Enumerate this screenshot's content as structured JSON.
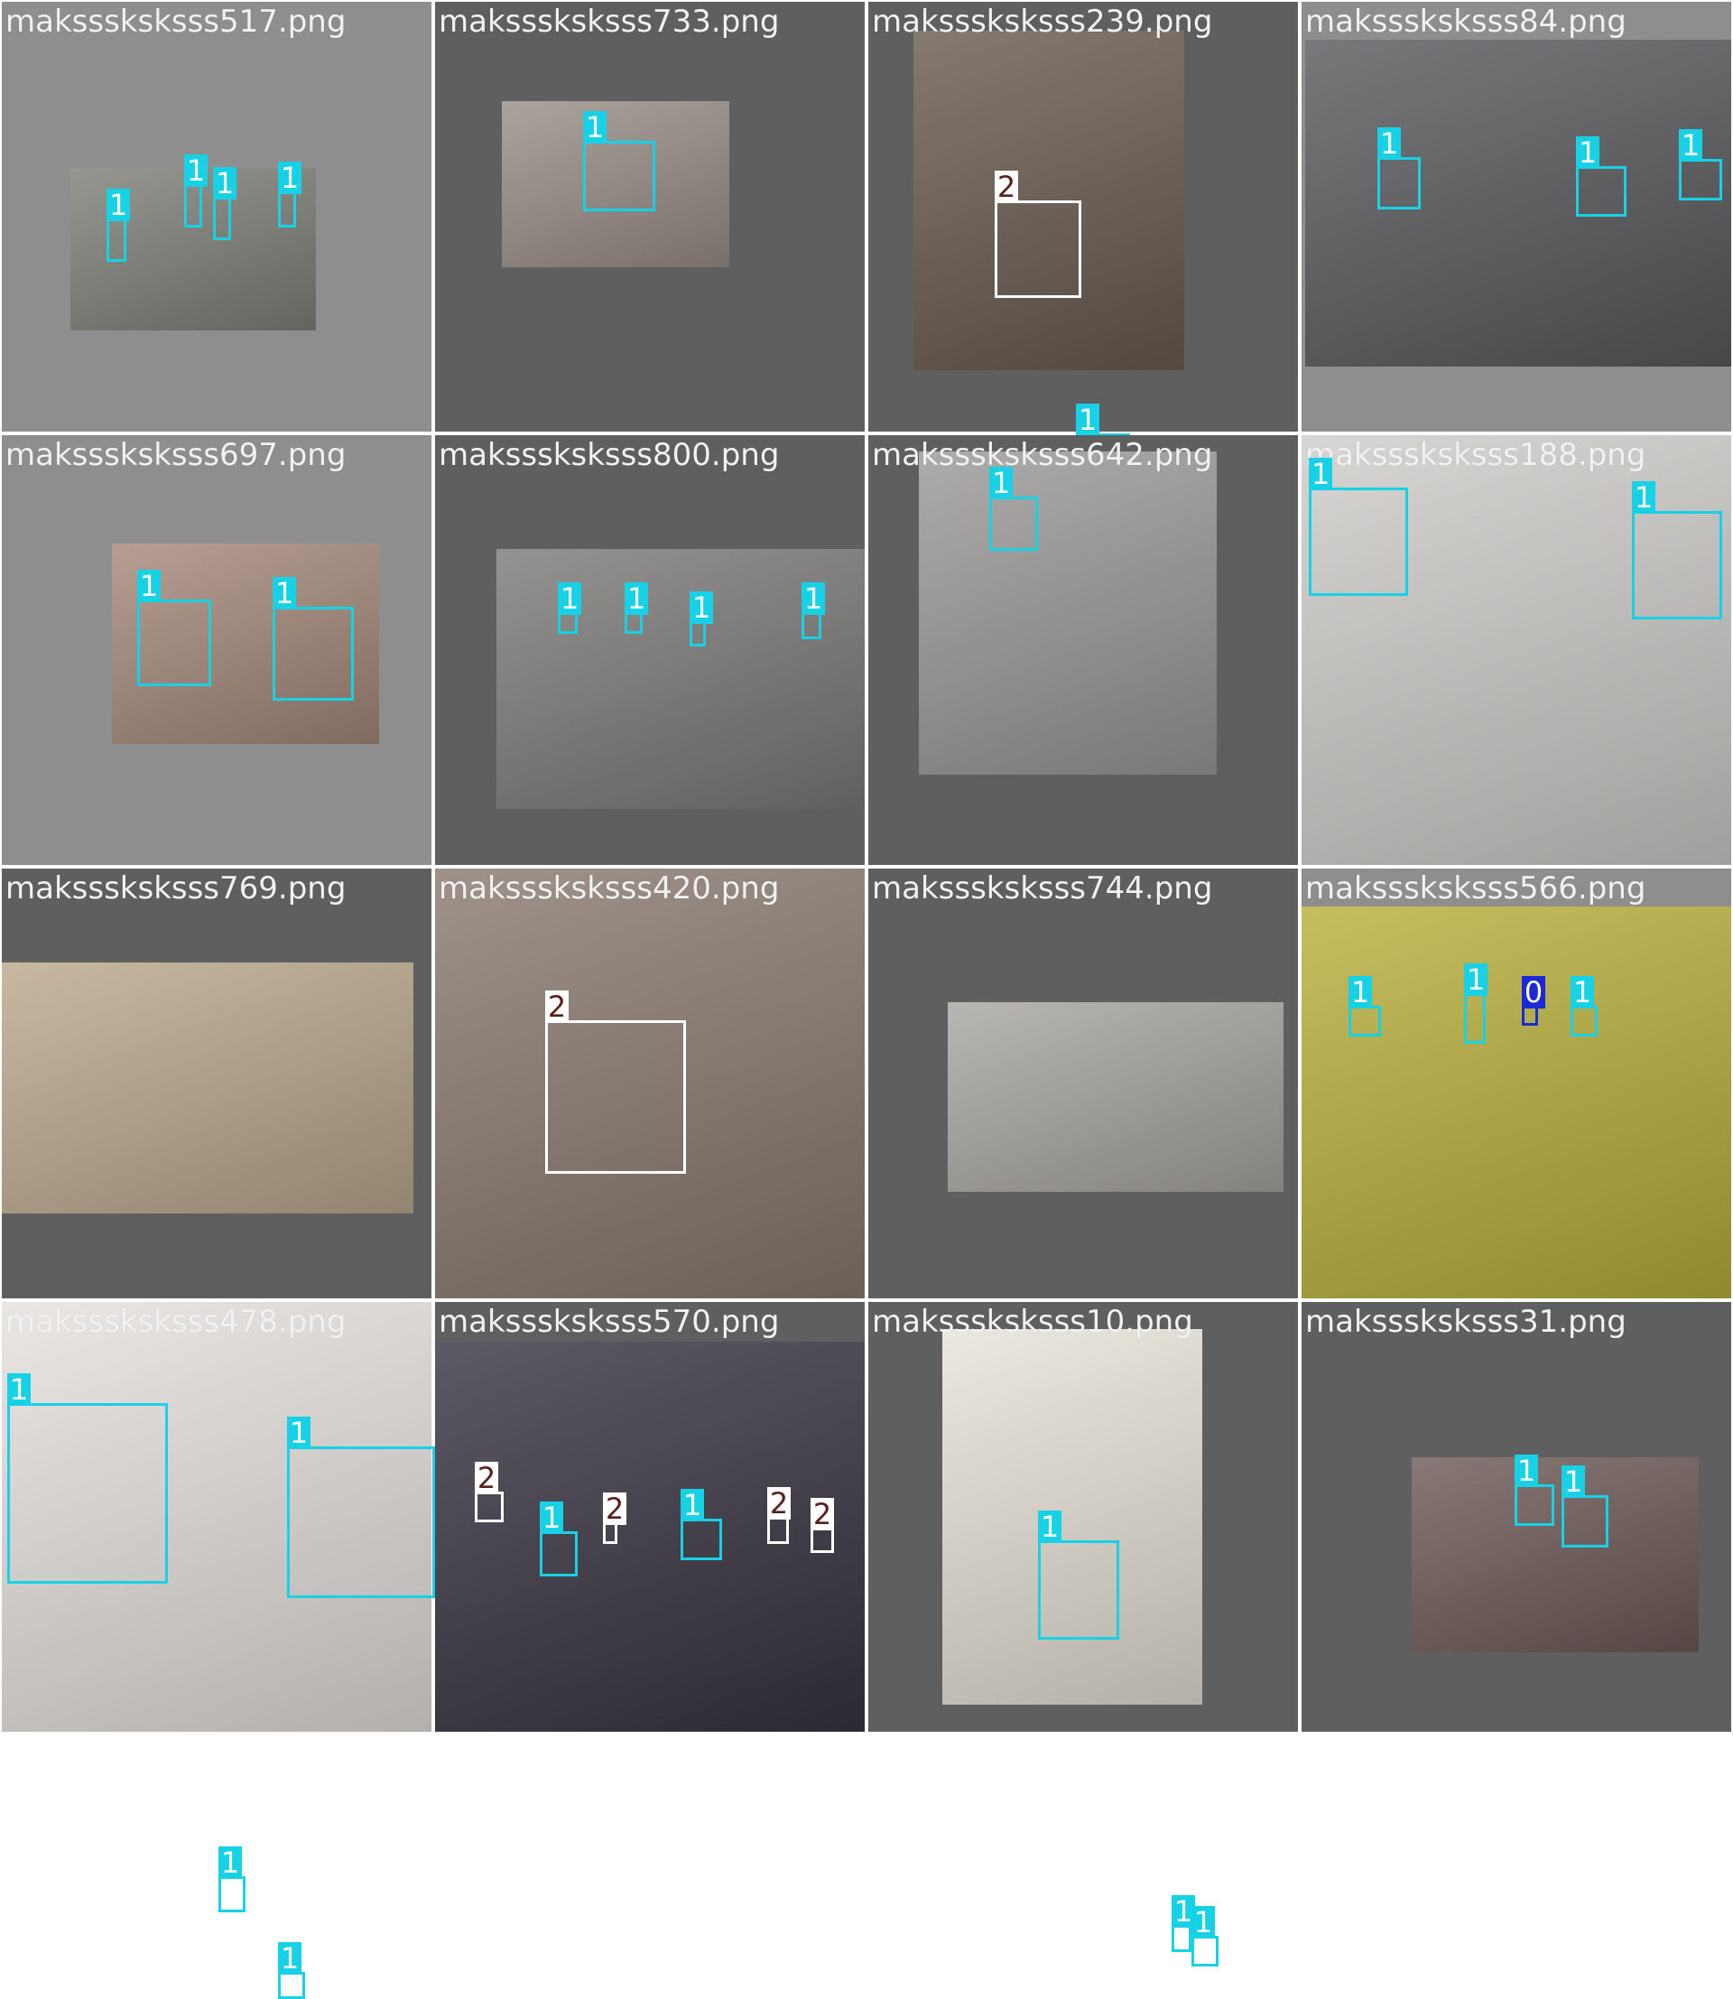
{
  "class_colors": {
    "0": {
      "border": "#1a2ad6",
      "label_bg": "#1a2ad6",
      "label_fg": "#ffffff"
    },
    "1": {
      "border": "#17d2e6",
      "label_bg": "#17d2e6",
      "label_fg": "#ffffff"
    },
    "2": {
      "border": "#ffffff",
      "label_bg": "#ffffff",
      "label_fg": "#5a1f1a"
    }
  },
  "tiles": [
    {
      "file": "maksssksksss517.png",
      "bg": "#8e8e8e",
      "photo_color": "#7f8178",
      "boxes": [
        {
          "cls": "1"
        },
        {
          "cls": "1"
        },
        {
          "cls": "1"
        },
        {
          "cls": "1"
        }
      ]
    },
    {
      "file": "maksssksksss733.png",
      "bg": "#5f5f5f",
      "photo_color": "#9a8f88",
      "boxes": [
        {
          "cls": "1"
        }
      ]
    },
    {
      "file": "maksssksksss239.png",
      "bg": "#5f5f5f",
      "photo_color": "#6a5d52",
      "boxes": [
        {
          "cls": "2"
        },
        {
          "cls": "1"
        }
      ]
    },
    {
      "file": "maksssksksss84.png",
      "bg": "#8e8e8e",
      "photo_color": "#5b5a5e",
      "boxes": [
        {
          "cls": "1"
        },
        {
          "cls": "1"
        },
        {
          "cls": "1"
        }
      ]
    },
    {
      "file": "maksssksksss697.png",
      "bg": "#8e8e8e",
      "photo_color": "#a68a7a",
      "boxes": [
        {
          "cls": "1"
        },
        {
          "cls": "1"
        }
      ]
    },
    {
      "file": "maksssksksss800.png",
      "bg": "#5f5f5f",
      "photo_color": "#7c7b7a",
      "boxes": [
        {
          "cls": "1"
        },
        {
          "cls": "1"
        },
        {
          "cls": "1"
        },
        {
          "cls": "1"
        }
      ]
    },
    {
      "file": "maksssksksss642.png",
      "bg": "#5f5f5f",
      "photo_color": "#9c9a98",
      "boxes": [
        {
          "cls": "1"
        }
      ]
    },
    {
      "file": "maksssksksss188.png",
      "bg": "#8e8e8e",
      "photo_color": "#cfcdca",
      "boxes": [
        {
          "cls": "1"
        },
        {
          "cls": "1"
        }
      ]
    },
    {
      "file": "maksssksksss769.png",
      "bg": "#5f5f5f",
      "photo_color": "#bca98e",
      "boxes": [
        {
          "cls": "1"
        },
        {
          "cls": "1"
        }
      ]
    },
    {
      "file": "maksssksksss420.png",
      "bg": "#8e8e8e",
      "photo_color": "#8a7a70",
      "boxes": [
        {
          "cls": "2"
        }
      ]
    },
    {
      "file": "maksssksksss744.png",
      "bg": "#5f5f5f",
      "photo_color": "#a9a6a3",
      "boxes": [
        {
          "cls": "1"
        },
        {
          "cls": "1"
        }
      ]
    },
    {
      "file": "maksssksksss566.png",
      "bg": "#8e8e8e",
      "photo_color": "#b9b03c",
      "boxes": [
        {
          "cls": "1"
        },
        {
          "cls": "1"
        },
        {
          "cls": "0"
        },
        {
          "cls": "1"
        }
      ]
    },
    {
      "file": "maksssksksss478.png",
      "bg": "#8e8e8e",
      "photo_color": "#e6e1de",
      "boxes": [
        {
          "cls": "1"
        },
        {
          "cls": "1"
        }
      ]
    },
    {
      "file": "maksssksksss570.png",
      "bg": "#5f5f5f",
      "photo_color": "#3a3542",
      "boxes": [
        {
          "cls": "2"
        },
        {
          "cls": "1"
        },
        {
          "cls": "2"
        },
        {
          "cls": "1"
        },
        {
          "cls": "2"
        },
        {
          "cls": "2"
        }
      ]
    },
    {
      "file": "maksssksksss10.png",
      "bg": "#5f5f5f",
      "photo_color": "#e8e2d8",
      "boxes": [
        {
          "cls": "1"
        }
      ]
    },
    {
      "file": "maksssksksss31.png",
      "bg": "#5f5f5f",
      "photo_color": "#6e5a58",
      "boxes": [
        {
          "cls": "1"
        },
        {
          "cls": "1"
        }
      ]
    }
  ]
}
